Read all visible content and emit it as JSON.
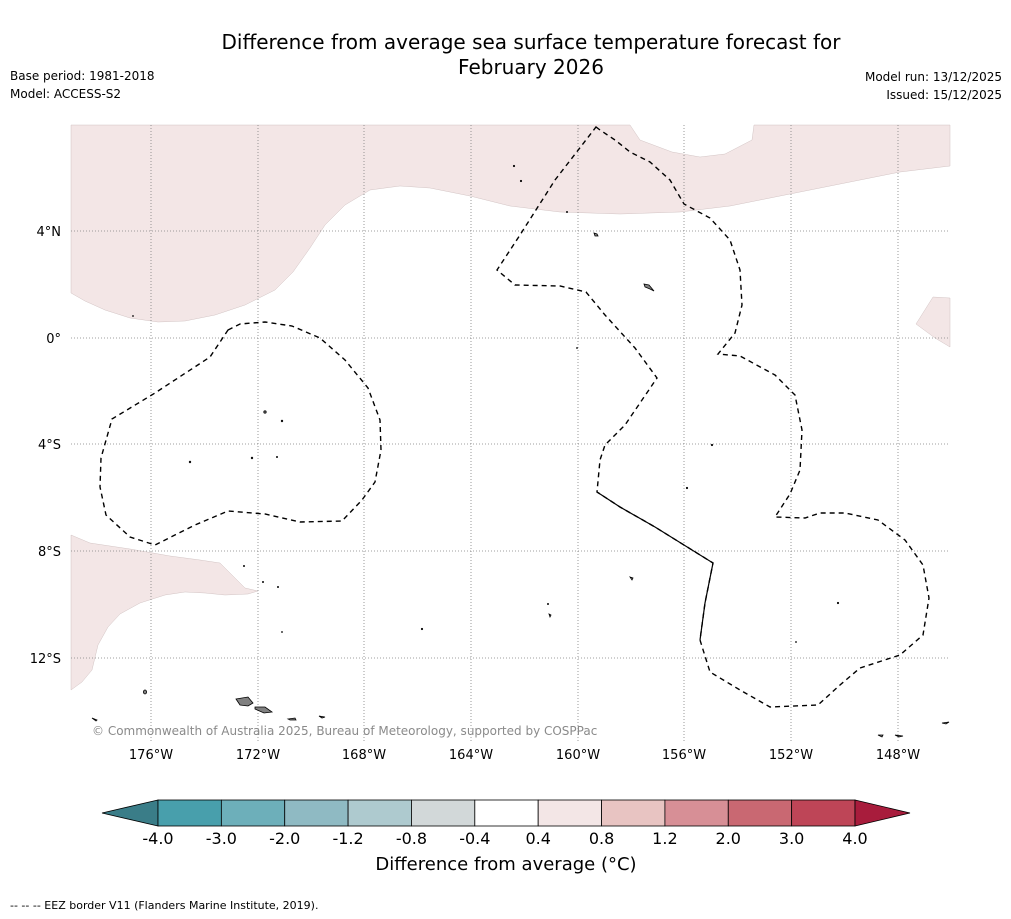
{
  "header": {
    "title_line1": "Difference from average sea surface temperature forecast for",
    "title_line2": "February 2026",
    "base_period": "Base period: 1981-2018",
    "model": "Model: ACCESS-S2",
    "model_run": "Model run: 13/12/2025",
    "issued": "Issued: 15/12/2025"
  },
  "map": {
    "lat_labels": [
      "4°N",
      "0°",
      "4°S",
      "8°S",
      "12°S"
    ],
    "lon_labels": [
      "176°W",
      "172°W",
      "168°W",
      "164°W",
      "160°W",
      "156°W",
      "152°W",
      "148°W"
    ],
    "copyright": "© Commonwealth of Australia 2025, Bureau of Meteorology, supported by COSPPac",
    "anomaly_fill_color": "#f3e6e6",
    "land_color": "#808080",
    "grid_color": "#808080"
  },
  "colorbar": {
    "ticks": [
      "-4.0",
      "-3.0",
      "-2.0",
      "-1.2",
      "-0.8",
      "-0.4",
      "0.4",
      "0.8",
      "1.2",
      "2.0",
      "3.0",
      "4.0"
    ],
    "colors": [
      "#489fac",
      "#6dafba",
      "#8fbac3",
      "#aecacf",
      "#d2d8d9",
      "#ffffff",
      "#f3e6e6",
      "#e8c4c2",
      "#d78f96",
      "#c96872",
      "#be4557"
    ],
    "under_color": "#3a7d88",
    "over_color": "#a81c3c",
    "title": "Difference from average (°C)"
  },
  "footer": {
    "eez_note": "--  --  -- EEZ border V11 (Flanders Marine Institute, 2019)."
  }
}
